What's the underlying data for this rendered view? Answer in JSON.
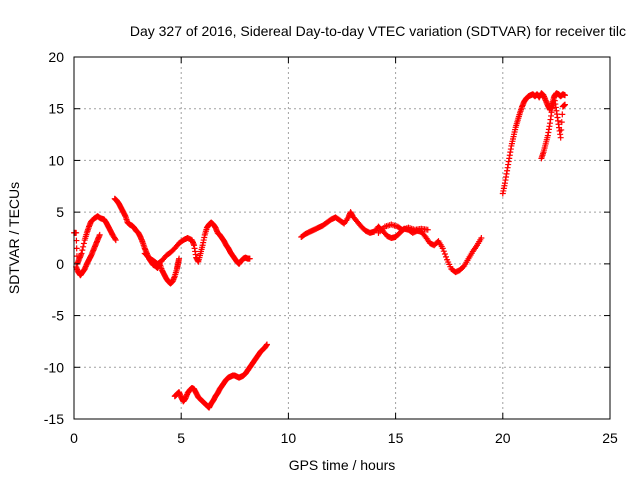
{
  "chart_data": {
    "type": "scatter",
    "title": "Day 327 of 2016, Sidereal Day-to-day VTEC variation (SDTVAR) for receiver tilc",
    "xlabel": "GPS time / hours",
    "ylabel": "SDTVAR / TECUs",
    "xlim": [
      0,
      25
    ],
    "ylim": [
      -15,
      20
    ],
    "xticks": [
      0,
      5,
      10,
      15,
      20,
      25
    ],
    "yticks": [
      -15,
      -10,
      -5,
      0,
      5,
      10,
      15,
      20
    ],
    "grid": true,
    "marker": "plus",
    "color": "#ff0000",
    "series": [
      {
        "x": [
          0.0,
          0.1,
          0.15,
          0.25,
          0.35,
          0.5,
          0.6,
          0.7,
          0.8,
          0.95,
          1.1,
          1.25,
          1.4,
          1.5,
          1.6,
          1.7,
          1.8,
          1.95
        ],
        "y": [
          3.0,
          3.0,
          0.0,
          0.5,
          1.0,
          2.3,
          3.0,
          3.6,
          4.1,
          4.4,
          4.6,
          4.4,
          4.3,
          4.0,
          3.6,
          3.2,
          2.8,
          2.3
        ]
      },
      {
        "x": [
          0.1,
          0.2,
          0.3,
          0.4,
          0.5,
          0.6,
          0.7,
          0.8,
          0.9,
          1.0,
          1.1,
          1.2
        ],
        "y": [
          -0.3,
          -0.8,
          -1.1,
          -0.8,
          -0.5,
          0.0,
          0.4,
          0.8,
          1.3,
          1.8,
          2.3,
          2.8
        ]
      },
      {
        "x": [
          1.9,
          2.0,
          2.1,
          2.2,
          2.3,
          2.4,
          2.5,
          2.6,
          2.7,
          2.8,
          2.9,
          3.0,
          3.1,
          3.2,
          3.3,
          3.4,
          3.5,
          3.6,
          3.7,
          3.8,
          3.9,
          4.0,
          4.1,
          4.2,
          4.3,
          4.4,
          4.5,
          4.6,
          4.7,
          4.8,
          4.85,
          4.9
        ],
        "y": [
          6.3,
          6.1,
          5.8,
          5.4,
          5.0,
          4.6,
          4.0,
          3.8,
          3.7,
          3.5,
          3.2,
          3.0,
          2.6,
          2.1,
          1.5,
          1.0,
          0.5,
          0.2,
          -0.1,
          -0.2,
          -0.4,
          0.0,
          -0.6,
          -1.0,
          -1.4,
          -1.7,
          -1.9,
          -1.7,
          -1.2,
          -0.5,
          0.0,
          0.5
        ]
      },
      {
        "x": [
          3.3,
          3.5,
          3.7,
          3.9,
          4.1,
          4.3,
          4.5,
          4.7,
          4.9,
          5.1,
          5.3,
          5.5,
          5.6,
          5.7,
          5.8,
          5.9,
          6.0,
          6.1,
          6.2,
          6.3,
          6.4,
          6.5,
          6.6,
          6.7,
          6.8,
          6.9,
          7.0,
          7.1,
          7.2,
          7.3,
          7.4,
          7.5,
          7.6,
          7.7,
          7.8,
          7.9,
          8.0,
          8.1,
          8.2
        ],
        "y": [
          1.0,
          0.6,
          0.3,
          0.0,
          0.3,
          0.8,
          1.1,
          1.5,
          2.0,
          2.3,
          2.5,
          2.3,
          1.8,
          0.6,
          0.2,
          1.0,
          1.8,
          2.8,
          3.5,
          3.8,
          4.0,
          3.8,
          3.5,
          3.0,
          2.8,
          2.5,
          2.2,
          1.8,
          1.5,
          1.1,
          0.8,
          0.5,
          0.2,
          0.0,
          0.3,
          0.5,
          0.6,
          0.5,
          0.5
        ]
      },
      {
        "x": [
          4.7,
          4.8,
          4.9,
          5.0,
          5.1,
          5.2,
          5.3,
          5.4,
          5.5,
          5.6,
          5.7,
          5.8,
          5.9,
          6.0,
          6.1,
          6.2,
          6.3,
          6.4,
          6.5,
          6.6,
          6.7,
          6.8,
          6.9,
          7.0,
          7.1,
          7.2,
          7.3,
          7.4,
          7.5,
          7.6,
          7.7,
          7.8,
          7.9,
          8.0,
          8.1,
          8.2,
          8.3,
          8.4,
          8.5,
          8.6,
          8.7,
          8.8,
          8.9,
          9.0
        ],
        "y": [
          -12.8,
          -12.6,
          -12.4,
          -12.9,
          -13.3,
          -13.0,
          -12.5,
          -12.2,
          -12.0,
          -12.1,
          -12.5,
          -12.9,
          -13.1,
          -13.3,
          -13.5,
          -13.7,
          -13.9,
          -13.5,
          -13.2,
          -12.8,
          -12.5,
          -12.1,
          -11.8,
          -11.5,
          -11.2,
          -11.0,
          -10.9,
          -10.8,
          -10.8,
          -10.9,
          -11.0,
          -10.9,
          -10.8,
          -10.6,
          -10.3,
          -10.0,
          -9.7,
          -9.4,
          -9.1,
          -8.8,
          -8.5,
          -8.3,
          -8.1,
          -7.8
        ]
      },
      {
        "x": [
          10.6,
          10.8,
          11.0,
          11.2,
          11.4,
          11.6,
          11.8,
          12.0,
          12.2,
          12.4,
          12.6,
          12.8,
          12.9,
          13.0,
          13.2,
          13.4,
          13.6,
          13.8,
          14.0,
          14.2,
          14.4,
          14.6,
          14.8,
          15.0,
          15.2,
          15.4,
          15.6,
          15.8,
          16.0,
          16.2,
          16.4,
          16.6,
          16.8,
          17.0,
          17.2,
          17.4,
          17.6,
          17.8,
          18.0,
          18.2,
          18.4,
          18.6,
          18.8,
          19.0
        ],
        "y": [
          2.6,
          2.9,
          3.1,
          3.3,
          3.5,
          3.7,
          4.0,
          4.3,
          4.5,
          4.2,
          3.9,
          4.5,
          5.0,
          4.6,
          4.1,
          3.6,
          3.2,
          3.0,
          3.1,
          3.6,
          3.2,
          2.7,
          2.5,
          2.6,
          3.0,
          3.4,
          3.3,
          3.0,
          3.2,
          3.1,
          2.6,
          2.0,
          1.8,
          2.2,
          1.5,
          0.4,
          -0.5,
          -0.8,
          -0.6,
          -0.2,
          0.5,
          1.2,
          1.8,
          2.5
        ]
      },
      {
        "x": [
          14.2,
          14.5,
          14.8,
          15.1,
          15.3,
          15.6,
          15.9,
          16.2,
          16.5
        ],
        "y": [
          3.0,
          3.6,
          3.8,
          3.6,
          3.3,
          3.5,
          3.3,
          3.4,
          3.3
        ]
      },
      {
        "x": [
          20.0,
          20.1,
          20.2,
          20.3,
          20.4,
          20.5,
          20.6,
          20.7,
          20.8,
          20.9,
          21.0,
          21.1,
          21.2,
          21.3,
          21.4,
          21.5,
          21.6,
          21.7,
          21.8,
          21.9,
          22.0,
          22.1,
          22.2,
          22.3,
          22.4,
          22.5,
          22.6,
          22.7,
          22.8,
          22.9
        ],
        "y": [
          6.8,
          7.8,
          9.0,
          10.2,
          11.4,
          12.3,
          13.2,
          13.9,
          14.6,
          15.2,
          15.7,
          16.0,
          16.2,
          16.3,
          16.4,
          16.2,
          16.4,
          16.1,
          16.5,
          16.3,
          15.8,
          15.3,
          14.9,
          15.5,
          16.2,
          16.5,
          16.4,
          16.2,
          16.4,
          16.3
        ]
      },
      {
        "x": [
          21.8,
          21.9,
          22.0,
          22.1,
          22.2,
          22.3,
          22.4,
          22.5,
          22.6,
          22.7,
          22.8,
          22.9
        ],
        "y": [
          10.2,
          10.8,
          11.6,
          12.4,
          13.6,
          15.0,
          16.1,
          14.8,
          13.5,
          12.2,
          15.2,
          15.4
        ]
      }
    ]
  }
}
